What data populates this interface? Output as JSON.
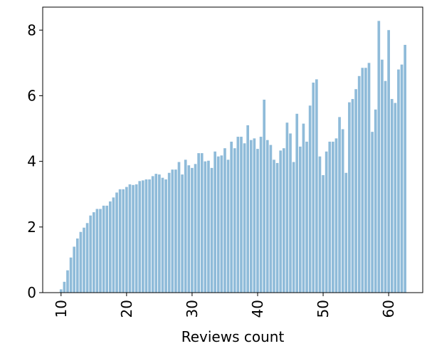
{
  "chart_data": {
    "type": "bar",
    "xlabel": "Reviews count",
    "color": "#8fbbd9",
    "x": [
      10,
      10.5,
      11,
      11.5,
      12,
      12.5,
      13,
      13.5,
      14,
      14.5,
      15,
      15.5,
      16,
      16.5,
      17,
      17.5,
      18,
      18.5,
      19,
      19.5,
      20,
      20.5,
      21,
      21.5,
      22,
      22.5,
      23,
      23.5,
      24,
      24.5,
      25,
      25.5,
      26,
      26.5,
      27,
      27.5,
      28,
      28.5,
      29,
      29.5,
      30,
      30.5,
      31,
      31.5,
      32,
      32.5,
      33,
      33.5,
      34,
      34.5,
      35,
      35.5,
      36,
      36.5,
      37,
      37.5,
      38,
      38.5,
      39,
      39.5,
      40,
      40.5,
      41,
      41.5,
      42,
      42.5,
      43,
      43.5,
      44,
      44.5,
      45,
      45.5,
      46,
      46.5,
      47,
      47.5,
      48,
      48.5,
      49,
      49.5,
      50,
      50.5,
      51,
      51.5,
      52,
      52.5,
      53,
      53.5,
      54,
      54.5,
      55,
      55.5,
      56,
      56.5,
      57,
      57.5,
      58,
      58.5,
      59,
      59.5,
      60,
      60.5,
      61,
      61.5,
      62,
      62.5
    ],
    "values": [
      0.1,
      0.33,
      0.68,
      1.07,
      1.4,
      1.65,
      1.85,
      1.98,
      2.12,
      2.35,
      2.45,
      2.55,
      2.55,
      2.65,
      2.65,
      2.78,
      2.9,
      3.05,
      3.15,
      3.15,
      3.22,
      3.3,
      3.28,
      3.3,
      3.4,
      3.42,
      3.45,
      3.45,
      3.55,
      3.62,
      3.6,
      3.5,
      3.45,
      3.65,
      3.75,
      3.75,
      3.98,
      3.6,
      4.05,
      3.88,
      3.8,
      3.92,
      4.25,
      4.25,
      4.0,
      4.02,
      3.8,
      4.3,
      4.15,
      4.18,
      4.4,
      4.05,
      4.6,
      4.4,
      4.75,
      4.75,
      4.55,
      5.1,
      4.65,
      4.7,
      4.38,
      4.75,
      5.88,
      4.65,
      4.5,
      4.05,
      3.95,
      4.33,
      4.4,
      5.18,
      4.85,
      3.98,
      5.45,
      4.45,
      5.15,
      4.6,
      5.7,
      6.4,
      6.5,
      4.15,
      3.58,
      4.3,
      4.6,
      4.6,
      4.7,
      5.35,
      4.98,
      3.65,
      5.8,
      5.9,
      6.2,
      6.6,
      6.85,
      6.85,
      7.0,
      4.9,
      5.58,
      8.28,
      7.1,
      6.45,
      8.0,
      5.9,
      5.78,
      6.8,
      6.95,
      7.55
    ],
    "xlim": [
      7.2,
      65.2
    ],
    "ylim": [
      0,
      8.7
    ],
    "xticks": [
      10,
      20,
      30,
      40,
      50,
      60
    ],
    "yticks": [
      0,
      2,
      4,
      6,
      8
    ]
  }
}
